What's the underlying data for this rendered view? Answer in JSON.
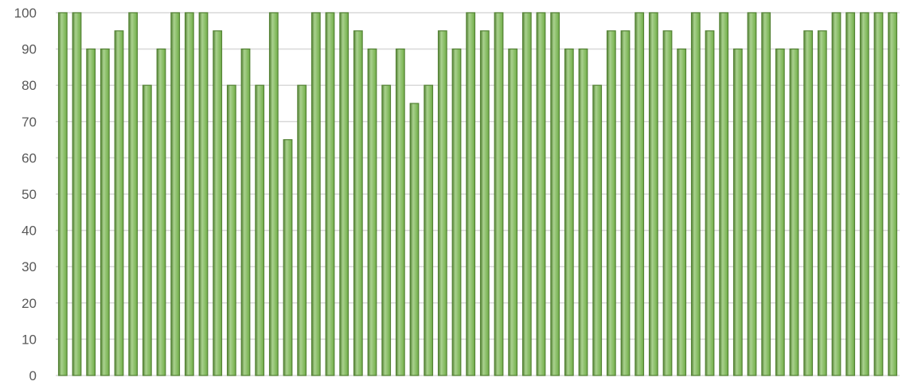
{
  "chart_data": {
    "type": "bar",
    "title": "",
    "xlabel": "",
    "ylabel": "",
    "ylim": [
      0,
      100
    ],
    "y_ticks": [
      0,
      10,
      20,
      30,
      40,
      50,
      60,
      70,
      80,
      90,
      100
    ],
    "grid": true,
    "legend": "none",
    "bar_color": "#70ad47",
    "bar_highlight": "#a9d18e",
    "bar_edge": "#548235",
    "grid_color": "#d9d9d9",
    "tick_label_color": "#595959",
    "values": [
      100,
      100,
      90,
      90,
      95,
      100,
      80,
      90,
      100,
      100,
      100,
      95,
      80,
      90,
      80,
      100,
      65,
      80,
      100,
      100,
      100,
      95,
      90,
      80,
      90,
      75,
      80,
      95,
      90,
      100,
      95,
      100,
      90,
      100,
      100,
      100,
      90,
      90,
      80,
      95,
      95,
      100,
      100,
      95,
      90,
      100,
      95,
      100,
      90,
      100,
      100,
      90,
      90,
      95,
      95,
      100,
      100,
      100,
      100,
      100
    ]
  }
}
